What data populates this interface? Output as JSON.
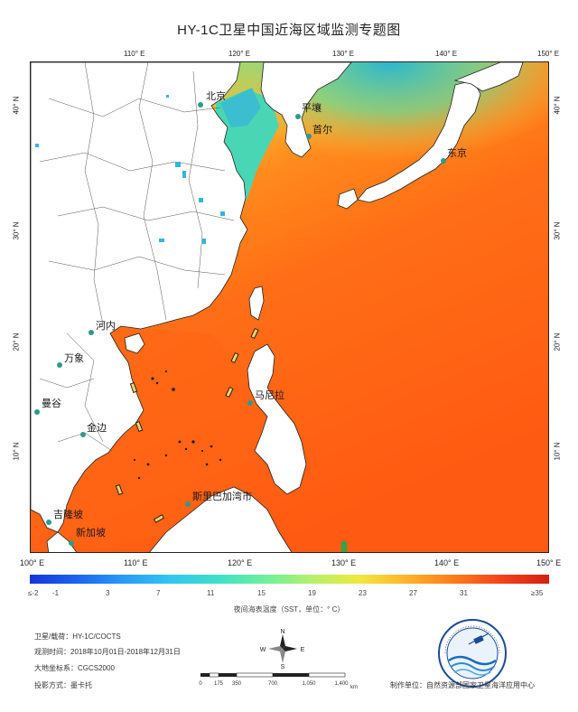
{
  "title": "HY-1C卫星中国近海区域监测专题图",
  "map": {
    "lon_labels": [
      "100° E",
      "110° E",
      "120° E",
      "130° E",
      "140° E",
      "150° E"
    ],
    "lat_labels": [
      "10° N",
      "20° N",
      "30° N",
      "40° N"
    ],
    "cities": [
      "北京",
      "平壤",
      "首尔",
      "东京",
      "河内",
      "万象",
      "曼谷",
      "金边",
      "马尼拉",
      "斯里巴加湾市",
      "吉隆坡",
      "新加坡"
    ],
    "colors": {
      "land": "#ffffff",
      "sea_warm": "#ff7a1a",
      "sea_hot": "#ff5e14",
      "sea_cool": "#3fd0b8",
      "border": "#555555",
      "city_dot": "#2e9a8e"
    }
  },
  "legend": {
    "ticks": [
      "≤-2",
      "-1",
      "3",
      "7",
      "11",
      "15",
      "19",
      "23",
      "27",
      "31",
      "≥35"
    ],
    "label": "夜间海表温度（SST，单位：° C）",
    "colors": [
      "#1535d8",
      "#1c64f0",
      "#2a9bf5",
      "#33c6f0",
      "#3fe0c8",
      "#6ff09a",
      "#b6f06a",
      "#f0e83c",
      "#ffb22a",
      "#ff7a1a",
      "#f2431a",
      "#d42010"
    ]
  },
  "metadata": {
    "satellite": "卫星/载荷：HY-1C/COCTS",
    "time": "观测时间：2018年10月01日-2018年12月31日",
    "crs": "大地坐标系：CGCS2000",
    "projection": "投影方式：墨卡托"
  },
  "compass": {
    "n": "N",
    "s": "S",
    "e": "E",
    "w": "W"
  },
  "scalebar": {
    "ticks": [
      "0",
      "175",
      "350",
      "700",
      "1,050",
      "1,400"
    ],
    "unit": "km"
  },
  "producer": "制作单位：自然资源部国家卫星海洋应用中心"
}
